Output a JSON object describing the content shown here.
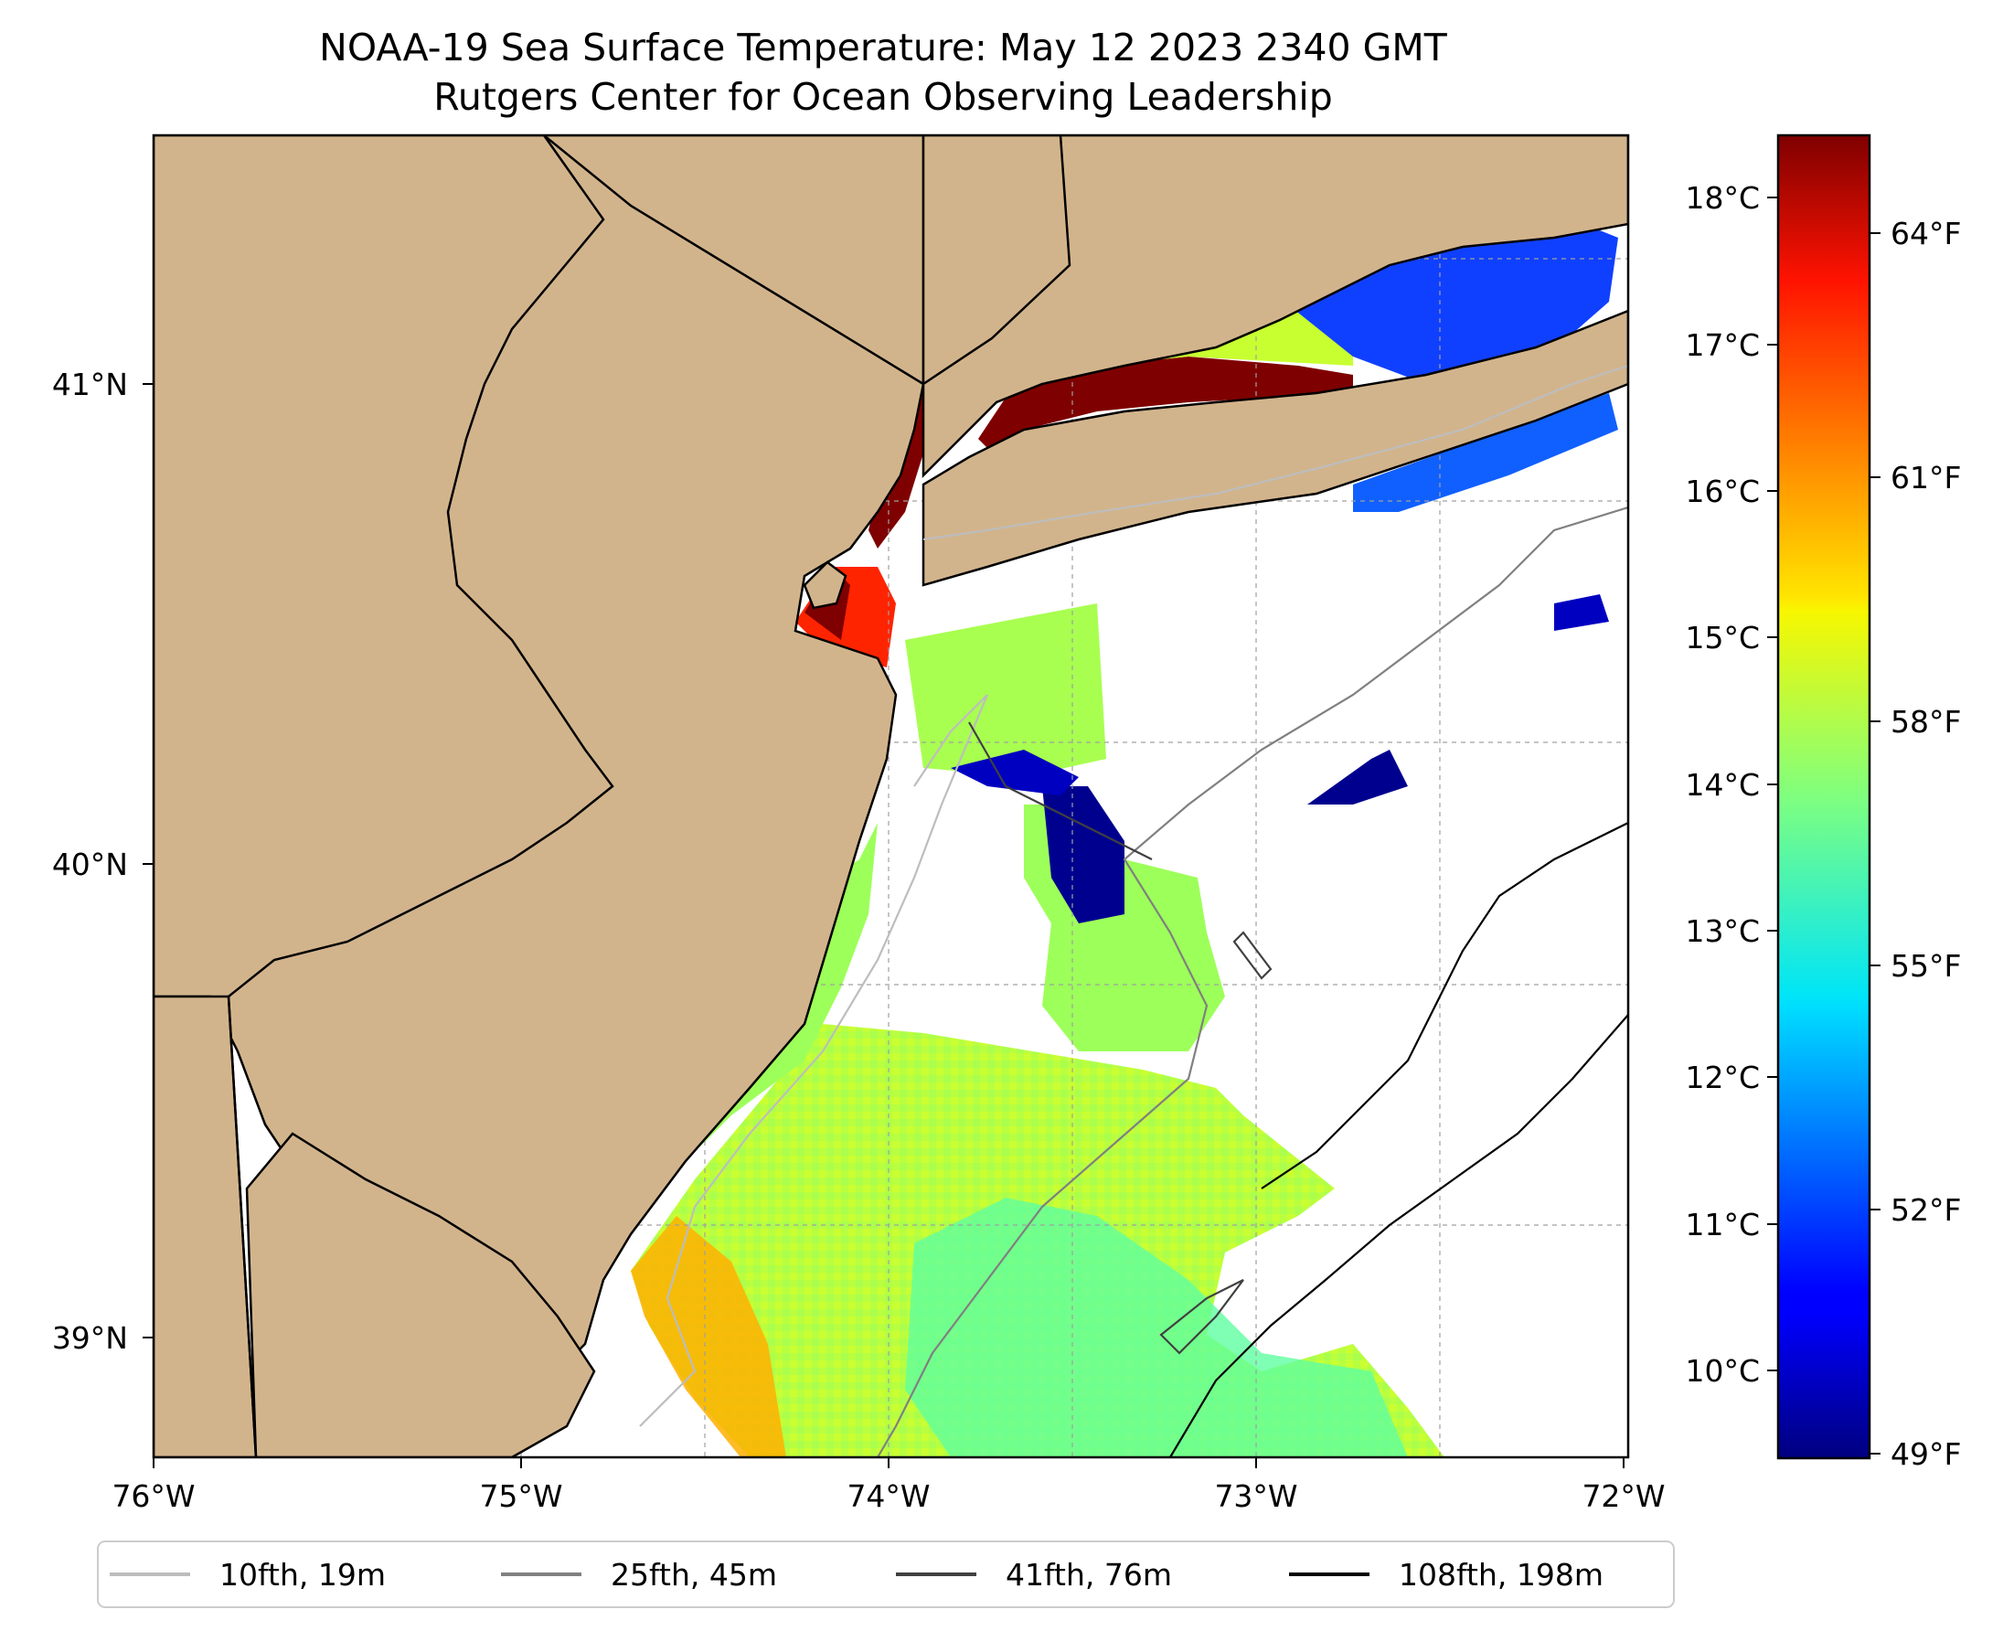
{
  "title": {
    "line1": "NOAA-19 Sea Surface Temperature: May 12 2023 2340 GMT",
    "line2": "Rutgers Center for Ocean Observing Leadership"
  },
  "map": {
    "lon_range": [
      -76.0,
      -72.0
    ],
    "lat_range": [
      38.7,
      41.5
    ],
    "land_color": "#d2b48c",
    "gridlines": true,
    "x_ticks": [
      "76°W",
      "75°W",
      "74°W",
      "73°W",
      "72°W"
    ],
    "y_ticks": [
      "41°N",
      "40°N",
      "39°N"
    ]
  },
  "colorbar": {
    "colormap": "jet",
    "celsius_range": [
      9.5,
      18.4
    ],
    "celsius_ticks": [
      "18°C",
      "17°C",
      "16°C",
      "15°C",
      "14°C",
      "13°C",
      "12°C",
      "11°C",
      "10°C"
    ],
    "fahrenheit_ticks": [
      "64°F",
      "61°F",
      "58°F",
      "55°F",
      "52°F",
      "49°F"
    ]
  },
  "legend": {
    "placement": "bottom",
    "items": [
      {
        "label": "10fth, 19m",
        "color": "#bdbdbd"
      },
      {
        "label": "25fth, 45m",
        "color": "#808080"
      },
      {
        "label": "41fth, 76m",
        "color": "#404040"
      },
      {
        "label": "108fth, 198m",
        "color": "#000000"
      }
    ]
  }
}
